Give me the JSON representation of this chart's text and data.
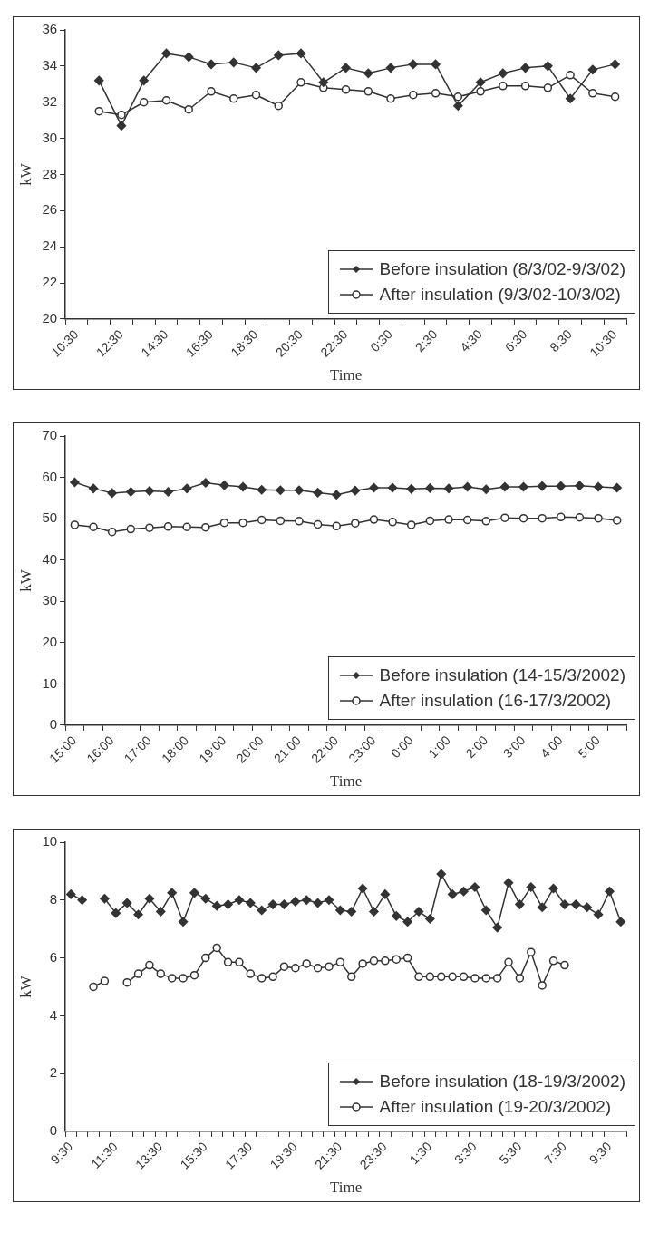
{
  "chart_data": [
    {
      "type": "line",
      "xlabel": "Time",
      "ylabel": "kW",
      "categories": [
        "10:30",
        null,
        "12:30",
        null,
        "14:30",
        null,
        "16:30",
        null,
        "18:30",
        null,
        "20:30",
        null,
        "22:30",
        null,
        "0:30",
        null,
        "2:30",
        null,
        "4:30",
        null,
        "6:30",
        null,
        "8:30",
        null,
        "10:30"
      ],
      "series": [
        {
          "name": "Before insulation (8/3/02-9/3/02)",
          "color": "#333333",
          "marker": "diamond",
          "values": [
            null,
            33.2,
            30.7,
            33.2,
            34.7,
            34.5,
            34.1,
            34.2,
            33.9,
            34.6,
            34.7,
            33.1,
            33.9,
            33.6,
            33.9,
            34.1,
            34.1,
            31.8,
            33.1,
            33.6,
            33.9,
            34.0,
            32.2,
            33.8,
            34.1
          ]
        },
        {
          "name": "After insulation (9/3/02-10/3/02)",
          "color": "#333333",
          "marker": "circle",
          "values": [
            null,
            31.5,
            31.3,
            32.0,
            32.1,
            31.6,
            32.6,
            32.2,
            32.4,
            31.8,
            33.1,
            32.8,
            32.7,
            32.6,
            32.2,
            32.4,
            32.5,
            32.3,
            32.6,
            32.9,
            32.9,
            32.8,
            33.5,
            32.5,
            32.3
          ]
        }
      ],
      "ylim": [
        20,
        36
      ],
      "yticks": [
        20,
        22,
        24,
        26,
        28,
        30,
        32,
        34,
        36
      ],
      "grid": false,
      "legend": "bottom right"
    },
    {
      "type": "line",
      "xlabel": "Time",
      "ylabel": "kW",
      "categories": [
        "15:00",
        null,
        "16:00",
        null,
        "17:00",
        null,
        "18:00",
        null,
        "19:00",
        null,
        "20:00",
        null,
        "21:00",
        null,
        "22:00",
        null,
        "23:00",
        null,
        "0:00",
        null,
        "1:00",
        null,
        "2:00",
        null,
        "3:00",
        null,
        "4:00",
        null,
        "5:00",
        null
      ],
      "series": [
        {
          "name": "Before insulation (14-15/3/2002)",
          "color": "#333333",
          "marker": "diamond",
          "values": [
            58.8,
            57.3,
            56.2,
            56.5,
            56.7,
            56.5,
            57.3,
            58.7,
            58.1,
            57.7,
            57.0,
            56.9,
            56.9,
            56.3,
            55.8,
            56.8,
            57.5,
            57.5,
            57.2,
            57.4,
            57.3,
            57.7,
            57.1,
            57.7,
            57.7,
            57.9,
            57.9,
            58.0,
            57.7,
            57.5
          ]
        },
        {
          "name": "After insulation (16-17/3/2002)",
          "color": "#333333",
          "marker": "circle",
          "values": [
            48.5,
            48.0,
            46.8,
            47.5,
            47.8,
            48.1,
            48.0,
            47.9,
            49.0,
            49.0,
            49.7,
            49.5,
            49.4,
            48.6,
            48.2,
            48.9,
            49.8,
            49.2,
            48.5,
            49.5,
            49.8,
            49.7,
            49.4,
            50.2,
            50.1,
            50.1,
            50.4,
            50.3,
            50.1,
            49.6
          ]
        }
      ],
      "ylim": [
        0,
        70
      ],
      "yticks": [
        0,
        10,
        20,
        30,
        40,
        50,
        60,
        70
      ],
      "grid": false,
      "legend": "bottom right"
    },
    {
      "type": "line",
      "xlabel": "Time",
      "ylabel": "kW",
      "categories": [
        "9:30",
        null,
        null,
        null,
        "11:30",
        null,
        null,
        null,
        "13:30",
        null,
        null,
        null,
        "15:30",
        null,
        null,
        null,
        "17:30",
        null,
        null,
        null,
        "19:30",
        null,
        null,
        null,
        "21:30",
        null,
        null,
        null,
        "23:30",
        null,
        null,
        null,
        "1:30",
        null,
        null,
        null,
        "3:30",
        null,
        null,
        null,
        "5:30",
        null,
        null,
        null,
        "7:30",
        null,
        null,
        null,
        "9:30",
        null
      ],
      "series": [
        {
          "name": "Before insulation (18-19/3/2002)",
          "color": "#333333",
          "marker": "diamond",
          "values": [
            8.2,
            8.0,
            null,
            8.05,
            7.55,
            7.9,
            7.5,
            8.05,
            7.6,
            8.25,
            7.25,
            8.25,
            8.05,
            7.8,
            7.85,
            8.0,
            7.9,
            7.65,
            7.85,
            7.85,
            7.95,
            8.0,
            7.9,
            8.0,
            7.65,
            7.6,
            8.4,
            7.6,
            8.2,
            7.45,
            7.25,
            7.6,
            7.35,
            8.9,
            8.2,
            8.3,
            8.45,
            7.65,
            7.05,
            8.6,
            7.85,
            8.45,
            7.75,
            8.4,
            7.85,
            7.85,
            7.75,
            7.5,
            8.3,
            7.25
          ]
        },
        {
          "name": "After insulation (19-20/3/2002)",
          "color": "#333333",
          "marker": "circle",
          "values": [
            null,
            null,
            5.0,
            5.2,
            null,
            5.15,
            5.45,
            5.75,
            5.45,
            5.3,
            5.3,
            5.4,
            6.0,
            6.35,
            5.85,
            5.85,
            5.45,
            5.3,
            5.35,
            5.7,
            5.65,
            5.8,
            5.65,
            5.7,
            5.85,
            5.35,
            5.8,
            5.9,
            5.9,
            5.95,
            6.0,
            5.35,
            5.35,
            5.35,
            5.35,
            5.35,
            5.3,
            5.3,
            5.3,
            5.85,
            5.3,
            6.2,
            5.05,
            5.9,
            5.75,
            null,
            null,
            null,
            null,
            null
          ]
        }
      ],
      "ylim": [
        0,
        10
      ],
      "yticks": [
        0,
        2,
        4,
        6,
        8,
        10
      ],
      "grid": false,
      "legend": "bottom right"
    }
  ]
}
